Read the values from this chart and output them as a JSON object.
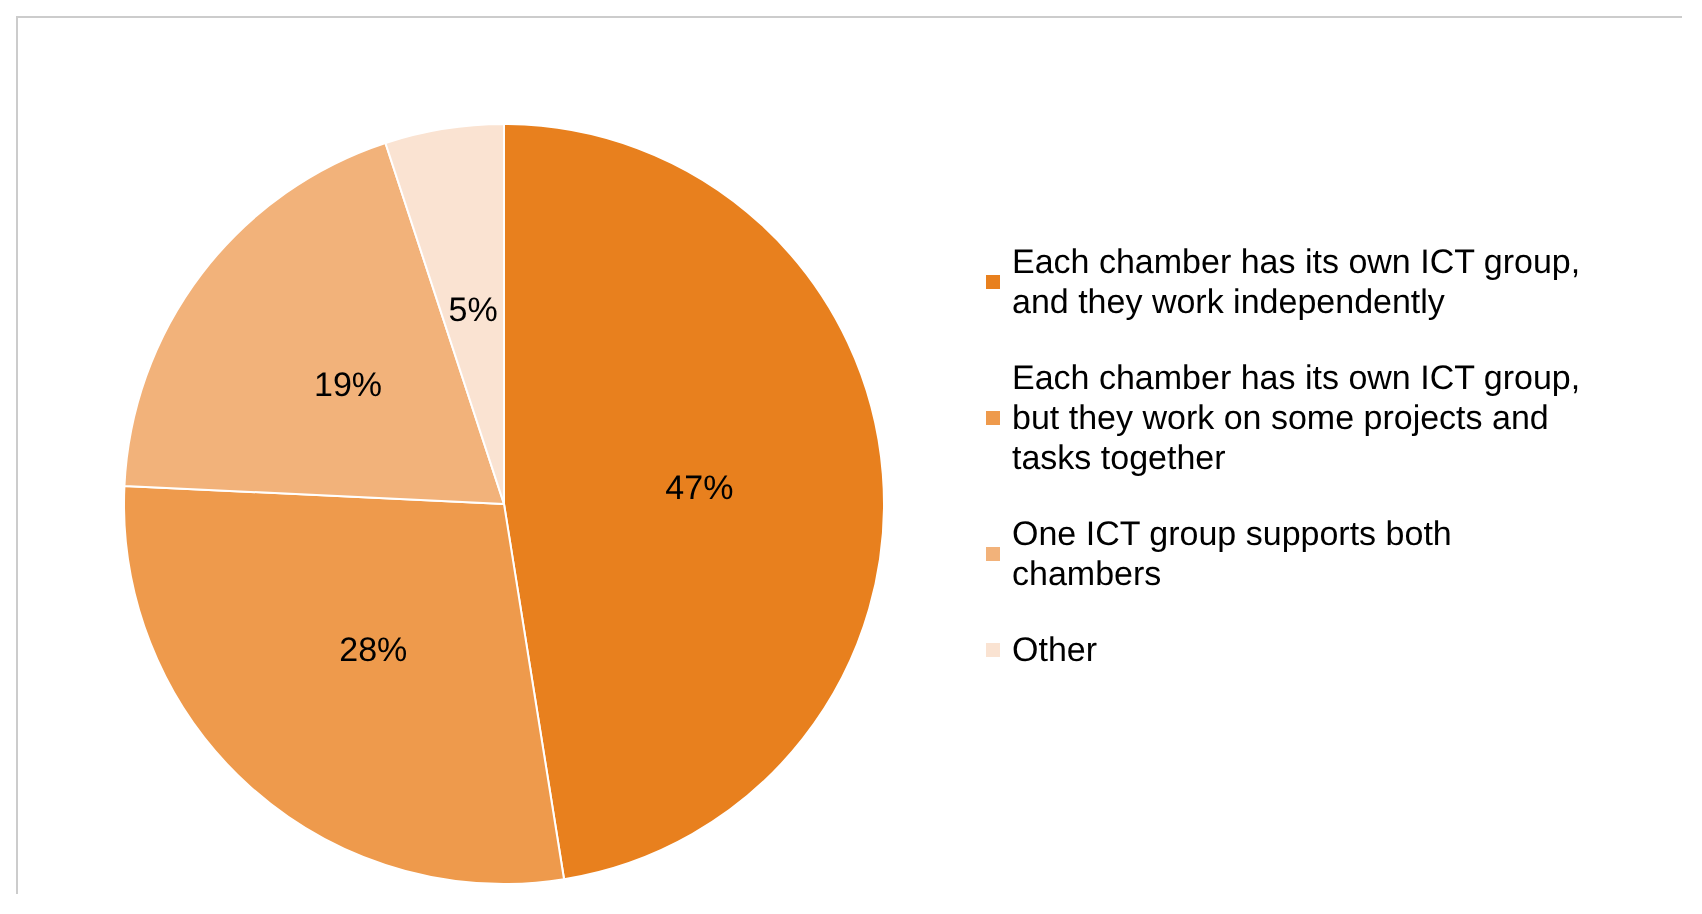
{
  "chart_data": {
    "type": "pie",
    "categories": [
      "Each chamber has its own ICT group, and they work independently",
      "Each chamber has its own ICT group, but they work on some projects and tasks together",
      "One ICT group supports both chambers",
      "Other"
    ],
    "values": [
      47,
      28,
      19,
      5
    ],
    "colors": [
      "#e8801e",
      "#ee9a4c",
      "#f2b27a",
      "#fae3d2"
    ],
    "value_labels": [
      "47%",
      "28%",
      "19%",
      "5%"
    ],
    "legend": "right"
  }
}
